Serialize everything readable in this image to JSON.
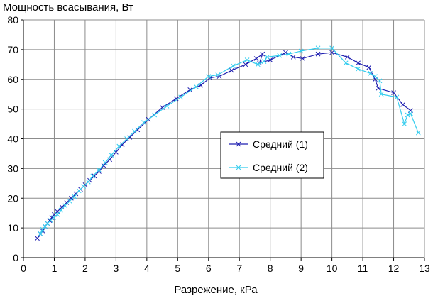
{
  "chart_data": {
    "type": "line",
    "title": "",
    "ylabel": "Мощность всасывания, Вт",
    "xlabel": "Разрежение, кРа",
    "xlim": [
      0,
      13
    ],
    "ylim": [
      0,
      80
    ],
    "x_ticks": [
      0,
      1,
      2,
      3,
      4,
      5,
      6,
      7,
      8,
      9,
      10,
      11,
      12,
      13
    ],
    "y_ticks": [
      0,
      10,
      20,
      30,
      40,
      50,
      60,
      70,
      80
    ],
    "grid": true,
    "legend_position": "center-right",
    "series": [
      {
        "name": "Средний (1)",
        "color": "#1f1fb0",
        "marker": "x",
        "x": [
          0.45,
          0.55,
          0.62,
          0.7,
          0.78,
          0.85,
          0.92,
          1.0,
          1.1,
          1.25,
          1.4,
          1.55,
          1.7,
          1.85,
          2.0,
          2.15,
          2.3,
          2.45,
          2.6,
          2.8,
          3.0,
          3.2,
          3.45,
          3.7,
          4.05,
          4.5,
          4.95,
          5.4,
          5.75,
          6.05,
          6.35,
          6.75,
          7.2,
          7.55,
          7.75,
          7.65,
          8.0,
          8.5,
          8.75,
          9.05,
          9.55,
          10.0,
          10.5,
          10.85,
          11.2,
          11.4,
          11.5,
          12.0,
          12.3,
          12.55
        ],
        "y": [
          6.5,
          8,
          9,
          10.5,
          11.5,
          12.5,
          13.5,
          14.5,
          15.5,
          17,
          18.5,
          20,
          21.5,
          23,
          24.5,
          26,
          27.5,
          29,
          31,
          33,
          35.5,
          38,
          40.5,
          43,
          46.5,
          50.5,
          53.5,
          56.5,
          58,
          60.5,
          61,
          63,
          65,
          67,
          68.5,
          65.5,
          66.5,
          69,
          67.5,
          67,
          68.5,
          69,
          67.5,
          65.5,
          64,
          60,
          57,
          55.5,
          51.5,
          49.5
        ]
      },
      {
        "name": "Средний (2)",
        "color": "#33ccee",
        "marker": "x",
        "x": [
          0.55,
          0.62,
          0.7,
          0.78,
          0.88,
          0.98,
          1.1,
          1.22,
          1.35,
          1.5,
          1.65,
          1.8,
          1.95,
          2.1,
          2.25,
          2.45,
          2.65,
          2.85,
          3.1,
          3.35,
          3.6,
          3.9,
          4.25,
          4.65,
          5.1,
          5.6,
          6.0,
          6.3,
          6.8,
          7.25,
          7.6,
          7.8,
          7.9,
          8.3,
          8.6,
          9.0,
          9.55,
          10.0,
          10.45,
          10.85,
          11.25,
          11.4,
          11.55,
          11.6,
          12.1,
          12.35,
          12.45,
          12.55,
          12.8
        ],
        "y": [
          8,
          9.5,
          10.5,
          11.5,
          12.5,
          13.5,
          14.5,
          16,
          17.5,
          19,
          20.5,
          22.5,
          24,
          25.5,
          27.5,
          29.5,
          32,
          34.5,
          37.5,
          40,
          42.5,
          45.5,
          48,
          51,
          54,
          57.5,
          61,
          61.5,
          64.5,
          66.5,
          65,
          66,
          67.5,
          68,
          68.5,
          69.5,
          70.5,
          70.5,
          65.5,
          63.5,
          62,
          61,
          59.5,
          55,
          54,
          45,
          48,
          48.5,
          42
        ]
      }
    ]
  }
}
